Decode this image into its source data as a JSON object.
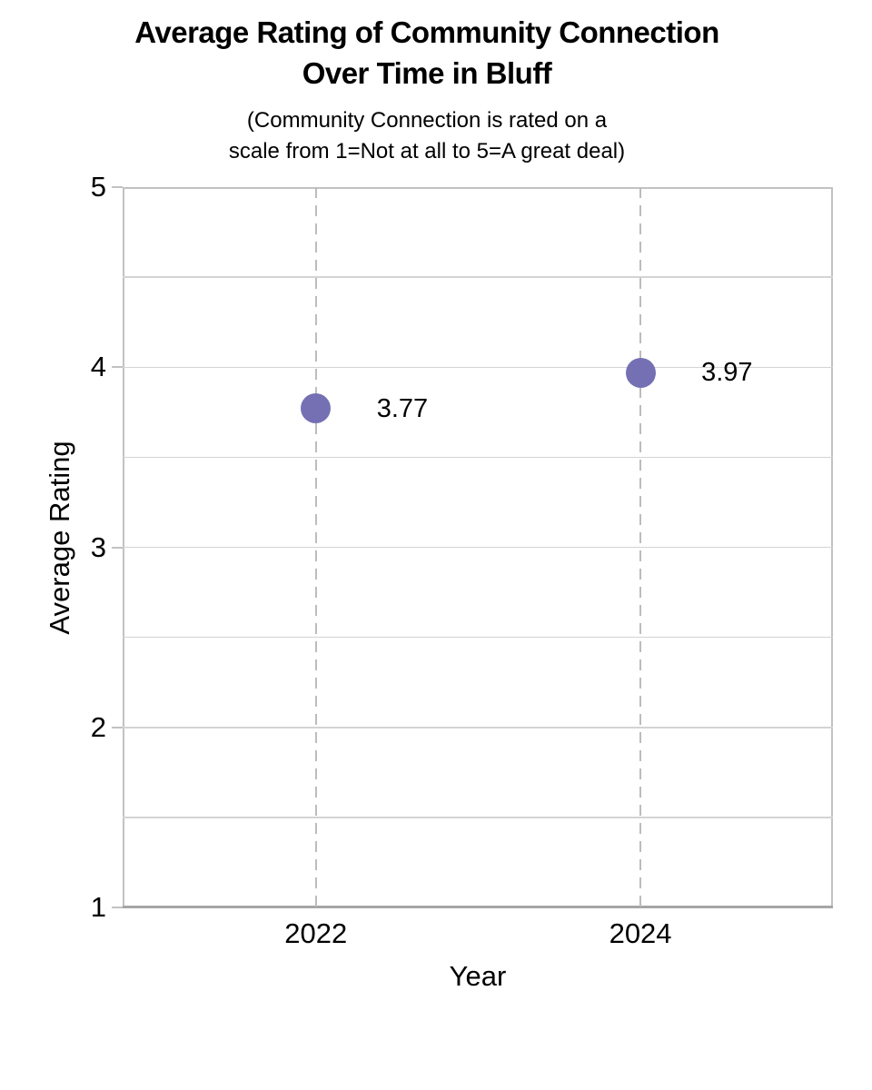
{
  "chart_data": {
    "type": "scatter",
    "title": "Average Rating of Community Connection\nOver Time in Bluff",
    "subtitle": "(Community Connection is rated on a\nscale from 1=Not at all to 5=A great deal)",
    "xlabel": "Year",
    "ylabel": "Average Rating",
    "categories": [
      "2022",
      "2024"
    ],
    "values": [
      3.77,
      3.97
    ],
    "point_labels": [
      "3.77",
      "3.97"
    ],
    "ylim": [
      1,
      5
    ],
    "yticks": [
      5,
      4,
      3,
      2,
      1
    ],
    "grid_step": 0.5,
    "legend_position": "none",
    "grid": "horizontal solid lines every 0.5; vertical dashed lines at category positions",
    "colors": {
      "point": "#7470b3",
      "h_gridline": "#d4d4d4",
      "v_dashed_gridline": "#bcbcbc",
      "plot_border": "#c2c2c2",
      "x_axis_line": "#a6a6a6",
      "text": "#000000"
    }
  }
}
